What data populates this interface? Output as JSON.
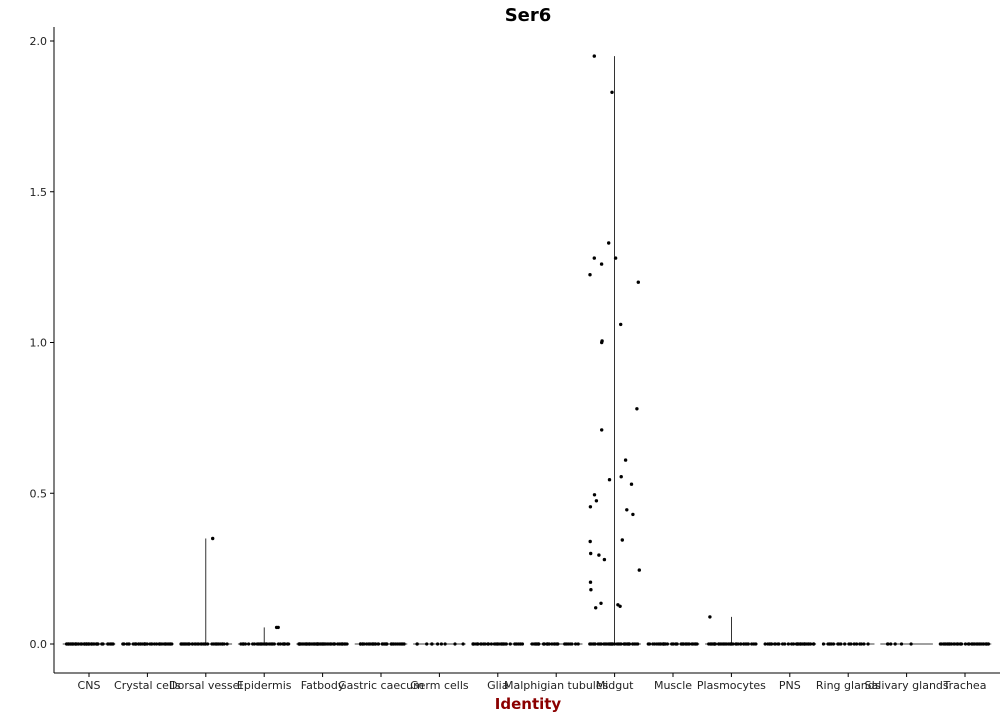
{
  "chart_data": {
    "type": "scatter",
    "subtype": "violin-jitter",
    "title": "Ser6",
    "xlabel": "Identity",
    "ylabel": "",
    "xlabel_color": "#8b0000",
    "point_color": "#000000",
    "ylim": [
      -0.1,
      2.05
    ],
    "yticks": [
      0.0,
      0.5,
      1.0,
      1.5,
      2.0
    ],
    "ytick_labels": [
      "0.0",
      "0.5",
      "1.0",
      "1.5",
      "2.0"
    ],
    "grid": false,
    "legend": "none",
    "categories": [
      "CNS",
      "Crystal cells",
      "Dorsal vessel",
      "Epidermis",
      "Fatbody",
      "Gastric caecum",
      "Germ cells",
      "Glia",
      "Malphigian tubules",
      "Midgut",
      "Muscle",
      "Plasmocytes",
      "PNS",
      "Ring glands",
      "Salivary glands",
      "Trachea"
    ],
    "zero_counts": [
      60,
      45,
      40,
      40,
      70,
      45,
      10,
      40,
      35,
      50,
      45,
      45,
      40,
      18,
      6,
      45
    ],
    "nonzero_points": [
      {
        "category": "Dorsal vessel",
        "values": [
          0.35
        ]
      },
      {
        "category": "Epidermis",
        "values": [
          0.055,
          0.055
        ]
      },
      {
        "category": "Midgut",
        "values": [
          1.95,
          1.83,
          1.33,
          1.28,
          1.28,
          1.26,
          1.225,
          1.2,
          1.06,
          1.005,
          1.0,
          0.78,
          0.71,
          0.61,
          0.555,
          0.545,
          0.53,
          0.495,
          0.475,
          0.455,
          0.445,
          0.43,
          0.345,
          0.34,
          0.3,
          0.295,
          0.28,
          0.245,
          0.205,
          0.18,
          0.135,
          0.13,
          0.125,
          0.12
        ]
      },
      {
        "category": "Plasmocytes",
        "values": [
          0.09
        ]
      }
    ]
  }
}
